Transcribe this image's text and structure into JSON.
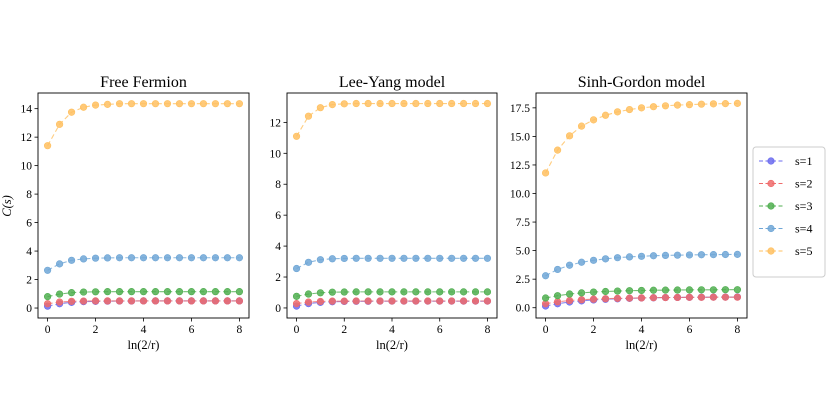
{
  "figure": {
    "ylabel": "C(s)",
    "xlabel": "ln(2/r)"
  },
  "legend": {
    "placement": "right",
    "entries": [
      {
        "label": "s=1",
        "color": "#6b6bef"
      },
      {
        "label": "s=2",
        "color": "#ef6b6b"
      },
      {
        "label": "s=3",
        "color": "#4fae4f"
      },
      {
        "label": "s=4",
        "color": "#6fa6d6"
      },
      {
        "label": "s=5",
        "color": "#ffc060"
      }
    ]
  },
  "chart_data": [
    {
      "type": "line",
      "title": "Free Fermion",
      "xlabel": "ln(2/r)",
      "ylabel": "C(s)",
      "xlim": [
        -0.4,
        8.4
      ],
      "ylim": [
        -0.7,
        15.1
      ],
      "xticks": [
        0,
        2,
        4,
        6,
        8
      ],
      "yticks": [
        0,
        2,
        4,
        6,
        8,
        10,
        12,
        14
      ],
      "x": [
        0,
        0.5,
        1,
        1.5,
        2,
        2.5,
        3,
        3.5,
        4,
        4.5,
        5,
        5.5,
        6,
        6.5,
        7,
        7.5,
        8
      ],
      "series": [
        {
          "name": "s=1",
          "color": "#6b6bef",
          "values": [
            0.13,
            0.3,
            0.4,
            0.45,
            0.47,
            0.48,
            0.49,
            0.49,
            0.5,
            0.5,
            0.5,
            0.5,
            0.5,
            0.5,
            0.5,
            0.5,
            0.5
          ]
        },
        {
          "name": "s=2",
          "color": "#ef6b6b",
          "values": [
            0.3,
            0.42,
            0.47,
            0.49,
            0.5,
            0.5,
            0.5,
            0.5,
            0.5,
            0.5,
            0.5,
            0.5,
            0.5,
            0.5,
            0.5,
            0.5,
            0.5
          ]
        },
        {
          "name": "s=3",
          "color": "#4fae4f",
          "values": [
            0.8,
            0.98,
            1.08,
            1.12,
            1.14,
            1.15,
            1.15,
            1.15,
            1.15,
            1.15,
            1.15,
            1.15,
            1.15,
            1.15,
            1.15,
            1.15,
            1.15
          ]
        },
        {
          "name": "s=4",
          "color": "#6fa6d6",
          "values": [
            2.65,
            3.1,
            3.35,
            3.45,
            3.5,
            3.52,
            3.53,
            3.53,
            3.53,
            3.53,
            3.53,
            3.53,
            3.53,
            3.53,
            3.53,
            3.53,
            3.53
          ]
        },
        {
          "name": "s=5",
          "color": "#ffc060",
          "values": [
            11.4,
            12.9,
            13.75,
            14.1,
            14.25,
            14.3,
            14.35,
            14.35,
            14.35,
            14.35,
            14.35,
            14.35,
            14.35,
            14.35,
            14.35,
            14.35,
            14.35
          ]
        }
      ]
    },
    {
      "type": "line",
      "title": "Lee-Yang model",
      "xlabel": "ln(2/r)",
      "ylim": [
        -0.65,
        13.9
      ],
      "xlim": [
        -0.4,
        8.4
      ],
      "xticks": [
        0,
        2,
        4,
        6,
        8
      ],
      "yticks": [
        0,
        2,
        4,
        6,
        8,
        10,
        12
      ],
      "x": [
        0,
        0.5,
        1,
        1.5,
        2,
        2.5,
        3,
        3.5,
        4,
        4.5,
        5,
        5.5,
        6,
        6.5,
        7,
        7.5,
        8
      ],
      "series": [
        {
          "name": "s=1",
          "color": "#6b6bef",
          "values": [
            0.12,
            0.28,
            0.36,
            0.4,
            0.42,
            0.43,
            0.43,
            0.44,
            0.44,
            0.44,
            0.44,
            0.44,
            0.44,
            0.44,
            0.44,
            0.44,
            0.44
          ]
        },
        {
          "name": "s=2",
          "color": "#ef6b6b",
          "values": [
            0.28,
            0.38,
            0.42,
            0.44,
            0.44,
            0.45,
            0.45,
            0.45,
            0.45,
            0.45,
            0.45,
            0.45,
            0.45,
            0.45,
            0.45,
            0.45,
            0.45
          ]
        },
        {
          "name": "s=3",
          "color": "#4fae4f",
          "values": [
            0.75,
            0.9,
            0.98,
            1.02,
            1.03,
            1.04,
            1.04,
            1.04,
            1.04,
            1.04,
            1.04,
            1.04,
            1.04,
            1.04,
            1.04,
            1.04,
            1.04
          ]
        },
        {
          "name": "s=4",
          "color": "#6fa6d6",
          "values": [
            2.55,
            2.95,
            3.12,
            3.18,
            3.2,
            3.21,
            3.21,
            3.21,
            3.21,
            3.21,
            3.21,
            3.21,
            3.21,
            3.21,
            3.21,
            3.21,
            3.21
          ]
        },
        {
          "name": "s=5",
          "color": "#ffc060",
          "values": [
            11.1,
            12.4,
            12.95,
            13.15,
            13.2,
            13.22,
            13.22,
            13.22,
            13.22,
            13.22,
            13.22,
            13.22,
            13.22,
            13.22,
            13.22,
            13.22,
            13.22
          ]
        }
      ]
    },
    {
      "type": "line",
      "title": "Sinh-Gordon model",
      "xlabel": "ln(2/r)",
      "ylim": [
        -0.9,
        18.8
      ],
      "xlim": [
        -0.4,
        8.4
      ],
      "xticks": [
        0,
        2,
        4,
        6,
        8
      ],
      "yticks": [
        0.0,
        2.5,
        5.0,
        7.5,
        10.0,
        12.5,
        15.0,
        17.5
      ],
      "yticklabels": [
        "0.0",
        "2.5",
        "5.0",
        "7.5",
        "10.0",
        "12.5",
        "15.0",
        "17.5"
      ],
      "x": [
        0,
        0.5,
        1,
        1.5,
        2,
        2.5,
        3,
        3.5,
        4,
        4.5,
        5,
        5.5,
        6,
        6.5,
        7,
        7.5,
        8
      ],
      "series": [
        {
          "name": "s=1",
          "color": "#6b6bef",
          "values": [
            0.15,
            0.35,
            0.5,
            0.6,
            0.68,
            0.74,
            0.78,
            0.82,
            0.85,
            0.87,
            0.89,
            0.9,
            0.91,
            0.92,
            0.93,
            0.93,
            0.94
          ]
        },
        {
          "name": "s=2",
          "color": "#ef6b6b",
          "values": [
            0.35,
            0.52,
            0.63,
            0.7,
            0.75,
            0.79,
            0.82,
            0.84,
            0.86,
            0.88,
            0.89,
            0.9,
            0.91,
            0.91,
            0.92,
            0.92,
            0.92
          ]
        },
        {
          "name": "s=3",
          "color": "#4fae4f",
          "values": [
            0.85,
            1.05,
            1.2,
            1.3,
            1.37,
            1.42,
            1.46,
            1.49,
            1.51,
            1.53,
            1.54,
            1.55,
            1.56,
            1.57,
            1.57,
            1.58,
            1.58
          ]
        },
        {
          "name": "s=4",
          "color": "#6fa6d6",
          "values": [
            2.8,
            3.35,
            3.72,
            3.98,
            4.15,
            4.28,
            4.38,
            4.45,
            4.5,
            4.55,
            4.58,
            4.6,
            4.62,
            4.64,
            4.65,
            4.66,
            4.67
          ]
        },
        {
          "name": "s=5",
          "color": "#ffc060",
          "values": [
            11.8,
            13.8,
            15.05,
            15.9,
            16.45,
            16.85,
            17.15,
            17.35,
            17.5,
            17.6,
            17.68,
            17.74,
            17.78,
            17.82,
            17.85,
            17.87,
            17.89
          ]
        }
      ]
    }
  ]
}
